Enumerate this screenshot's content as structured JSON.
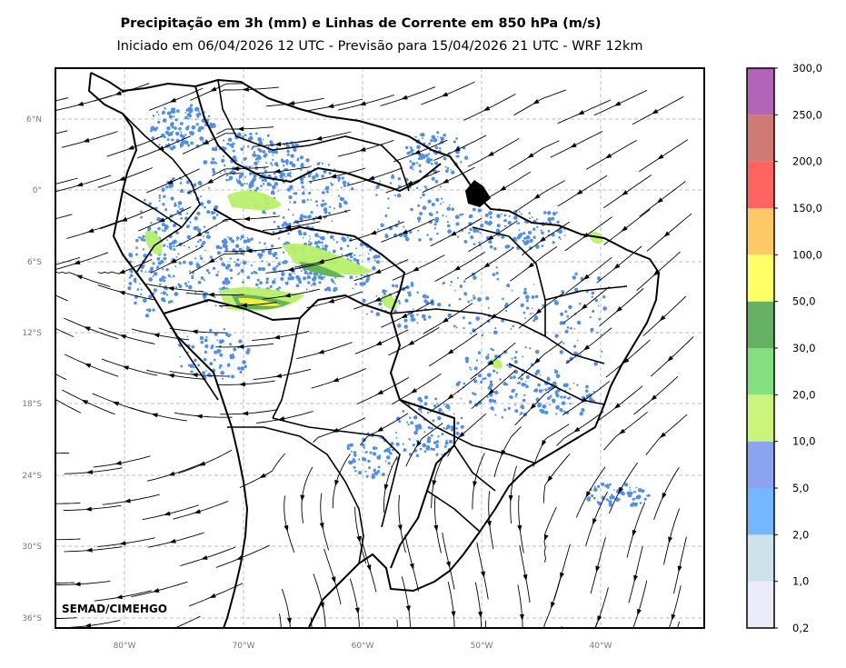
{
  "title": "Precipitação em 3h (mm) e Linhas de Corrente em 850 hPa (m/s)",
  "subtitle": "Iniciado em 06/04/2026 12 UTC - Previsão para 15/04/2026 21 UTC - WRF 12km",
  "credit": "SEMAD/CIMEHGO",
  "lat_labels": [
    "6°N",
    "0°",
    "6°S",
    "12°S",
    "18°S",
    "24°S",
    "30°S",
    "36°S"
  ],
  "lon_labels": [
    "80°W",
    "70°W",
    "60°W",
    "50°W",
    "40°W"
  ],
  "colorbar": {
    "levels": [
      "0,2",
      "1,0",
      "2,0",
      "5,0",
      "10,0",
      "20,0",
      "30,0",
      "50,0",
      "100,0",
      "150,0",
      "200,0",
      "250,0",
      "300,0"
    ],
    "colors": [
      "#ecebf8",
      "#cde3ec",
      "#74b7ff",
      "#8ca4ef",
      "#c9f57a",
      "#83df7f",
      "#66b064",
      "#ffff66",
      "#fdc866",
      "#ff6461",
      "#d07a76",
      "#b264b9"
    ]
  },
  "colors": {
    "rain": "#4f8fe6",
    "rain_moderate": "#b9f06a",
    "rain_heavy": "#62b35a",
    "rain_extreme": "#f3ef3d"
  }
}
